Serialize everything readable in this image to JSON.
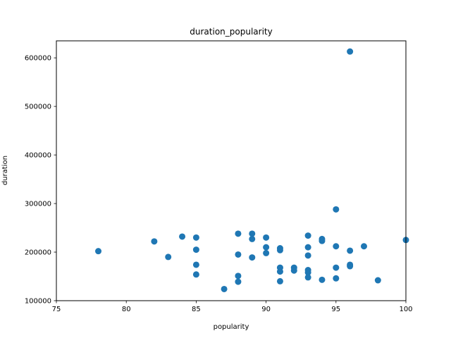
{
  "chart_data": {
    "type": "scatter",
    "title": "duration_popularity",
    "xlabel": "popularity",
    "ylabel": "duration",
    "xlim": [
      75,
      100
    ],
    "ylim": [
      100000,
      635000
    ],
    "xticks": [
      75,
      80,
      85,
      90,
      95,
      100
    ],
    "yticks": [
      100000,
      200000,
      300000,
      400000,
      500000,
      600000
    ],
    "grid": false,
    "marker_color": "#1f77b4",
    "points": [
      [
        78,
        202000
      ],
      [
        82,
        222000
      ],
      [
        83,
        190000
      ],
      [
        84,
        232000
      ],
      [
        85,
        230000
      ],
      [
        85,
        205000
      ],
      [
        85,
        174000
      ],
      [
        85,
        154000
      ],
      [
        87,
        124000
      ],
      [
        88,
        238000
      ],
      [
        88,
        195000
      ],
      [
        88,
        151000
      ],
      [
        88,
        139000
      ],
      [
        89,
        238000
      ],
      [
        89,
        227000
      ],
      [
        89,
        189000
      ],
      [
        90,
        230000
      ],
      [
        90,
        210000
      ],
      [
        90,
        198000
      ],
      [
        91,
        208000
      ],
      [
        91,
        204000
      ],
      [
        91,
        168000
      ],
      [
        91,
        160000
      ],
      [
        91,
        140000
      ],
      [
        92,
        168000
      ],
      [
        92,
        162000
      ],
      [
        93,
        234000
      ],
      [
        93,
        210000
      ],
      [
        93,
        193000
      ],
      [
        93,
        163000
      ],
      [
        93,
        158000
      ],
      [
        93,
        148000
      ],
      [
        94,
        227000
      ],
      [
        94,
        223000
      ],
      [
        94,
        143000
      ],
      [
        95,
        288000
      ],
      [
        95,
        212000
      ],
      [
        95,
        168000
      ],
      [
        95,
        146000
      ],
      [
        96,
        613000
      ],
      [
        96,
        203000
      ],
      [
        96,
        174000
      ],
      [
        96,
        171000
      ],
      [
        97,
        212000
      ],
      [
        98,
        142000
      ],
      [
        100,
        225000
      ]
    ]
  }
}
